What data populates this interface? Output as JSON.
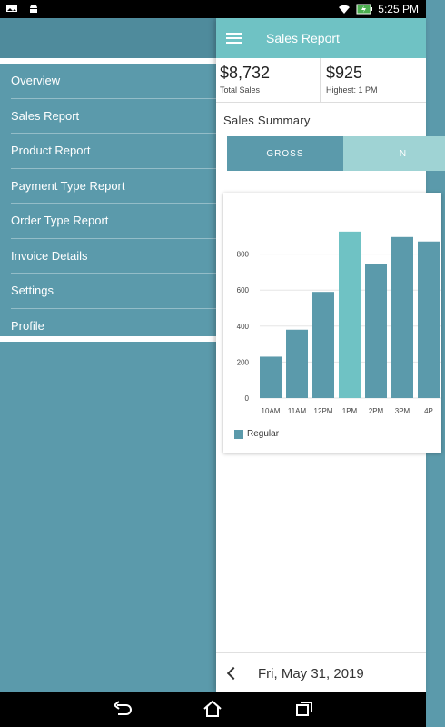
{
  "status": {
    "time": "5:25 PM"
  },
  "drawer": {
    "items": [
      {
        "label": "Overview"
      },
      {
        "label": "Sales Report"
      },
      {
        "label": "Product Report"
      },
      {
        "label": "Payment Type Report"
      },
      {
        "label": "Order Type Report"
      },
      {
        "label": "Invoice Details"
      },
      {
        "label": "Settings"
      },
      {
        "label": "Profile"
      }
    ]
  },
  "appbar": {
    "title": "Sales Report",
    "menu_icon": "menu-icon"
  },
  "stats": [
    {
      "value": "$8,732",
      "label": "Total Sales"
    },
    {
      "value": "$925",
      "label": "Highest: 1 PM"
    }
  ],
  "summary": {
    "title": "Sales Summary",
    "tab_gross": "GROSS",
    "tab_net": "N"
  },
  "chart_data": {
    "type": "bar",
    "categories": [
      "10AM",
      "11AM",
      "12PM",
      "1PM",
      "2PM",
      "3PM",
      "4P"
    ],
    "series": [
      {
        "name": "Regular",
        "values": [
          230,
          380,
          590,
          925,
          745,
          895,
          870
        ]
      }
    ],
    "highlight_index": 3,
    "yticks": [
      "0",
      "200",
      "400",
      "600",
      "800"
    ],
    "ylim": [
      0,
      1000
    ],
    "colors": {
      "bar": "#5b9aab",
      "highlight": "#6fc2c4"
    },
    "legend": "bottom-left",
    "grid": true
  },
  "date_bar": {
    "date": "Fri, May 31, 2019"
  },
  "colors": {
    "primary": "#5b9aab",
    "accent": "#6fc2c4"
  }
}
